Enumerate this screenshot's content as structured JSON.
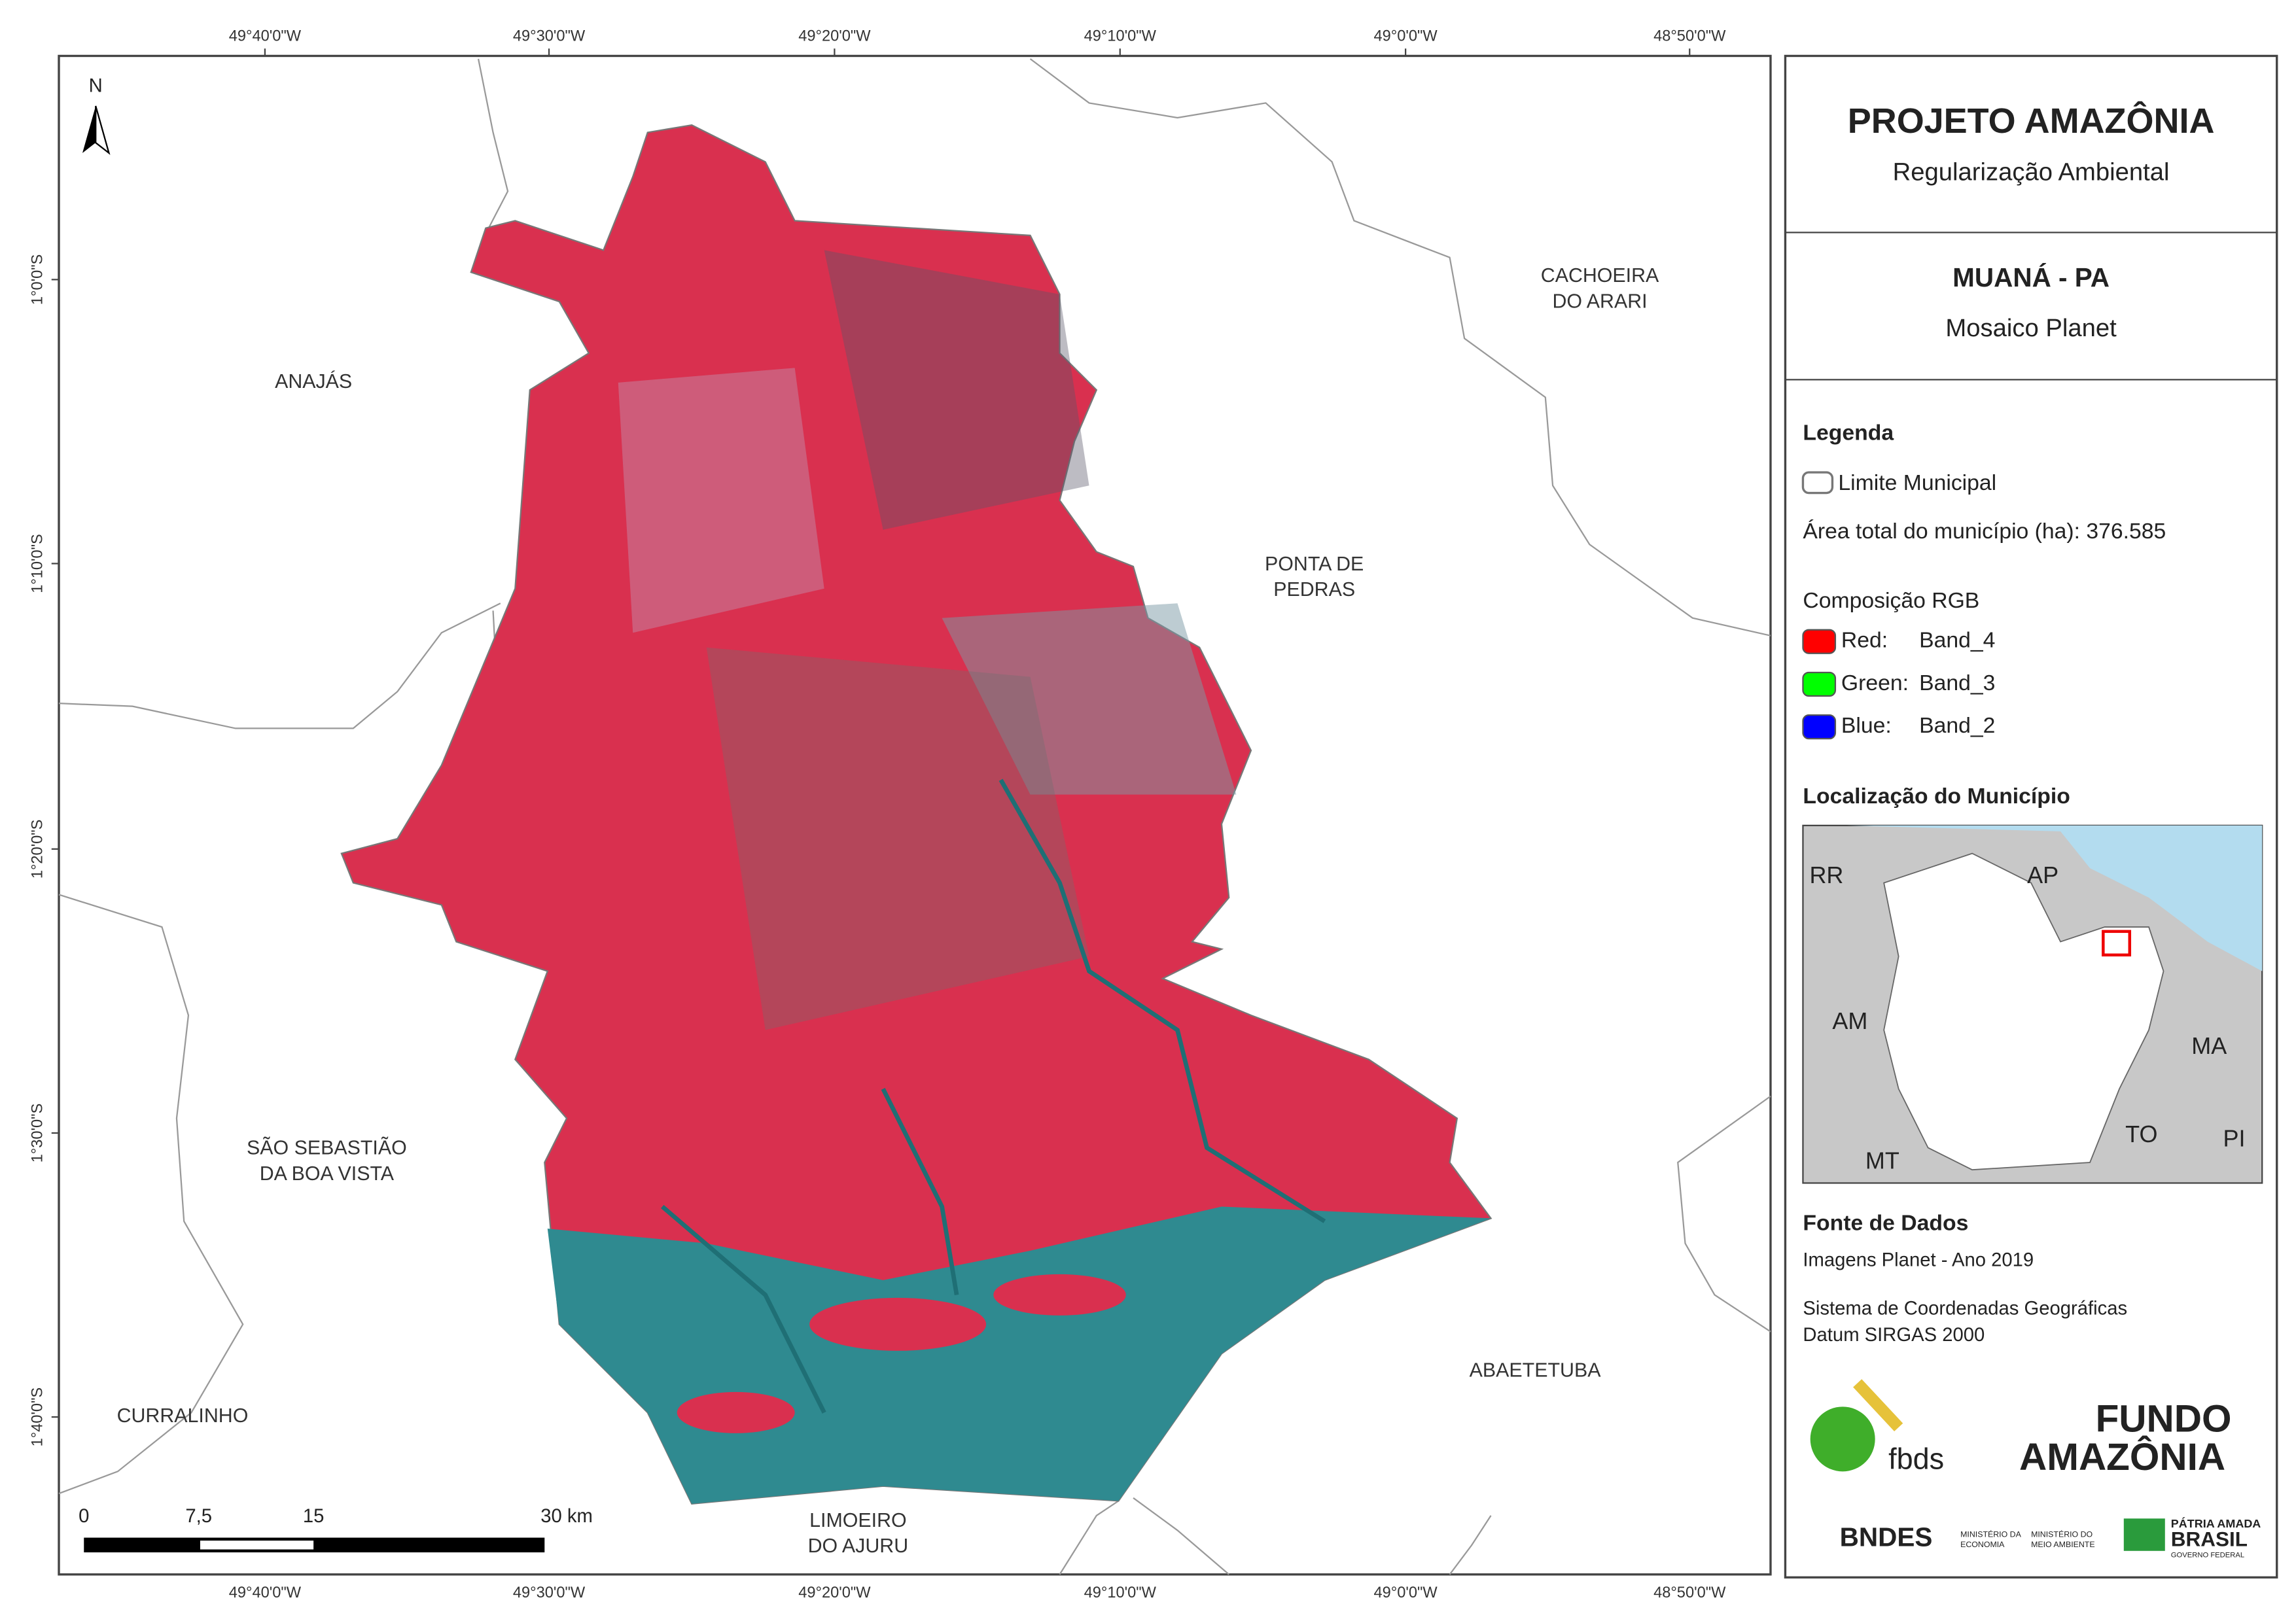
{
  "header": {
    "title": "PROJETO AMAZÔNIA",
    "subtitle": "Regularização Ambiental",
    "municipality": "MUANÁ - PA",
    "product": "Mosaico Planet"
  },
  "coordinates": {
    "longitudes": [
      "49°40'0\"W",
      "49°30'0\"W",
      "49°20'0\"W",
      "49°10'0\"W",
      "49°0'0\"W",
      "48°50'0\"W"
    ],
    "latitudes": [
      "1°0'0\"S",
      "1°10'0\"S",
      "1°20'0\"S",
      "1°30'0\"S",
      "1°40'0\"S"
    ]
  },
  "north_arrow": "N",
  "places": [
    {
      "lines": [
        "ANAJÁS"
      ]
    },
    {
      "lines": [
        "CACHOEIRA",
        "DO ARARI"
      ]
    },
    {
      "lines": [
        "PONTA DE",
        "PEDRAS"
      ]
    },
    {
      "lines": [
        "SÃO SEBASTIÃO",
        "DA BOA VISTA"
      ]
    },
    {
      "lines": [
        "CURRALINHO"
      ]
    },
    {
      "lines": [
        "ABAETETUBA"
      ]
    },
    {
      "lines": [
        "LIMOEIRO",
        "DO AJURU"
      ]
    }
  ],
  "scale_bar": {
    "labels": [
      "0",
      "7,5",
      "15",
      "30 km"
    ]
  },
  "legend": {
    "title": "Legenda",
    "boundary": "Limite Municipal",
    "area": "Área total do município (ha): 376.585",
    "rgb_title": "Composição RGB",
    "bands": [
      {
        "label": "Red:",
        "band": "Band_4",
        "color": "#ff0000"
      },
      {
        "label": "Green:",
        "band": "Band_3",
        "color": "#00ff00"
      },
      {
        "label": "Blue:",
        "band": "Band_2",
        "color": "#0000ff"
      }
    ]
  },
  "location": {
    "title": "Localização do Município",
    "states": [
      "RR",
      "AP",
      "AM",
      "MA",
      "TO",
      "PI",
      "MT"
    ]
  },
  "sources": {
    "title": "Fonte de Dados",
    "lines": [
      "Imagens Planet - Ano 2019",
      "Sistema de Coordenadas Geográficas",
      "Datum SIRGAS 2000"
    ]
  },
  "logos": {
    "fbds": "fbds",
    "fundo": [
      "FUNDO",
      "AMAZÔNIA"
    ],
    "bndes": "BNDES",
    "economia": [
      "MINISTÉRIO DA",
      "ECONOMIA"
    ],
    "meio_ambiente": [
      "MINISTÉRIO DO",
      "MEIO AMBIENTE"
    ],
    "brasil": [
      "PÁTRIA AMADA",
      "BRASIL",
      "GOVERNO FEDERAL"
    ]
  }
}
